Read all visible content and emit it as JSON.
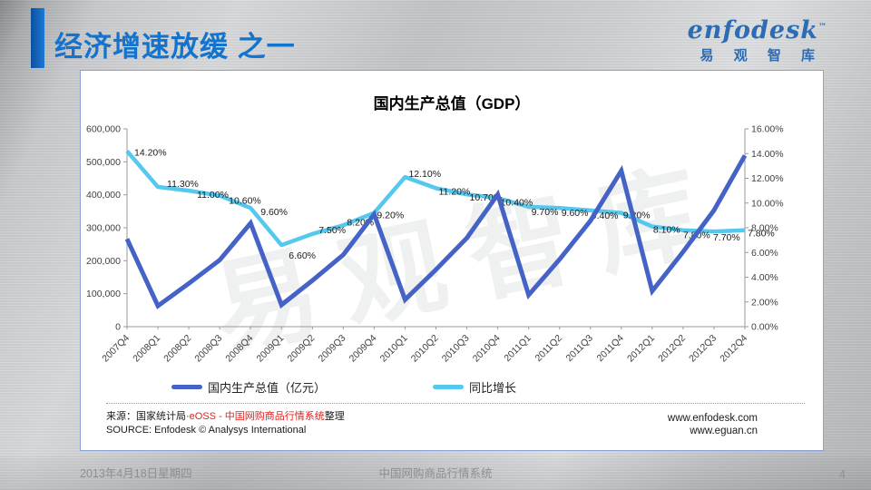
{
  "slide": {
    "title": "经济增速放缓 之一",
    "logo": {
      "brand": "enfodesk",
      "tm": "™",
      "cn": "易 观 智 库"
    },
    "watermark": "易观智库",
    "footer": {
      "date": "2013年4月18日星期四",
      "title": "中国网购商品行情系统",
      "page": "4"
    }
  },
  "card": {
    "source": {
      "prefix": "来源：国家统计局·",
      "red": "eOSS - 中国网购商品行情系统",
      "suffix": "整理",
      "line2": "SOURCE: Enfodesk © Analysys International"
    },
    "urls": {
      "line1": "www.enfodesk.com",
      "line2": "www.eguan.cn"
    }
  },
  "chart_data": {
    "type": "line",
    "title": "国内生产总值（GDP）",
    "categories": [
      "2007Q4",
      "2008Q1",
      "2008Q2",
      "2008Q3",
      "2008Q4",
      "2009Q1",
      "2009Q2",
      "2009Q3",
      "2009Q4",
      "2010Q1",
      "2010Q2",
      "2010Q3",
      "2010Q4",
      "2011Q1",
      "2011Q2",
      "2011Q3",
      "2011Q4",
      "2012Q1",
      "2012Q2",
      "2012Q3",
      "2012Q4"
    ],
    "series": [
      {
        "name": "国内生产总值（亿元）",
        "axis": "left",
        "color": "#4563c6",
        "values": [
          266000,
          63000,
          131000,
          202000,
          314000,
          66000,
          140000,
          218000,
          341000,
          82000,
          173000,
          269000,
          401000,
          96000,
          204000,
          321000,
          473000,
          108000,
          227000,
          353000,
          519000
        ]
      },
      {
        "name": "同比增长",
        "axis": "right",
        "color": "#55c8ee",
        "values": [
          14.2,
          11.3,
          11.0,
          10.6,
          9.6,
          6.6,
          7.5,
          8.2,
          9.2,
          12.1,
          11.2,
          10.7,
          10.4,
          9.7,
          9.6,
          9.4,
          9.2,
          8.1,
          7.8,
          7.7,
          7.8
        ],
        "point_labels": [
          "14.20%",
          "11.30%",
          "11.00%",
          "10.60%",
          "9.60%",
          "6.60%",
          "7.50%",
          "8.20%",
          "9.20%",
          "12.10%",
          "11.20%",
          "10.70%",
          "10.40%",
          "9.70%",
          "9.60%",
          "9.40%",
          "9.20%",
          "8.10%",
          "7.80%",
          "7.70%",
          "7.80%"
        ]
      }
    ],
    "left_axis": {
      "min": 0,
      "max": 600000,
      "step": 100000,
      "tick_labels": [
        "0",
        "100,000",
        "200,000",
        "300,000",
        "400,000",
        "500,000",
        "600,000"
      ]
    },
    "right_axis": {
      "min": 0,
      "max": 16,
      "step": 2,
      "tick_labels": [
        "0.00%",
        "2.00%",
        "4.00%",
        "6.00%",
        "8.00%",
        "10.00%",
        "12.00%",
        "14.00%",
        "16.00%"
      ]
    },
    "legend_position": "bottom",
    "grid": false
  }
}
